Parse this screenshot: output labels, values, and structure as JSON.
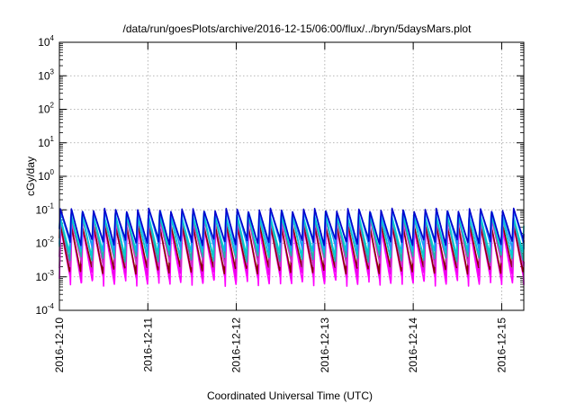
{
  "chart_data": {
    "type": "line",
    "title": "/data/run/goesPlots/archive/2016-12-15/06:00/flux/../bryn/5daysMars.plot",
    "xlabel": "Coordinated Universal Time (UTC)",
    "ylabel": "cGy/day",
    "yscale": "log",
    "ylim": [
      0.0001,
      10000
    ],
    "xlim": [
      "2016-12-10T00:00",
      "2016-12-15T06:00"
    ],
    "grid": true,
    "x_ticks": [
      "2016-12-10",
      "2016-12-11",
      "2016-12-12",
      "2016-12-13",
      "2016-12-14",
      "2016-12-15"
    ],
    "y_ticks": [
      {
        "base": "10",
        "exp": "-4"
      },
      {
        "base": "10",
        "exp": "-3"
      },
      {
        "base": "10",
        "exp": "-2"
      },
      {
        "base": "10",
        "exp": "-1"
      },
      {
        "base": "10",
        "exp": "0"
      },
      {
        "base": "10",
        "exp": "1"
      },
      {
        "base": "10",
        "exp": "2"
      },
      {
        "base": "10",
        "exp": "3"
      },
      {
        "base": "10",
        "exp": "4"
      }
    ],
    "pattern": {
      "period_hours": 3.0,
      "count": 30
    },
    "series": [
      {
        "color": "#ff00ff",
        "peak": 0.028,
        "trough": 0.0007
      },
      {
        "color": "#ee00ee",
        "peak": 0.034,
        "trough": 0.0011
      },
      {
        "color": "#8b0000",
        "peak": 0.04,
        "trough": 0.0016
      },
      {
        "color": "#cc33cc",
        "peak": 0.05,
        "trough": 0.0024
      },
      {
        "color": "#20b2aa",
        "peak": 0.062,
        "trough": 0.0035
      },
      {
        "color": "#00ced1",
        "peak": 0.075,
        "trough": 0.005
      },
      {
        "color": "#1e90ff",
        "peak": 0.09,
        "trough": 0.0075
      },
      {
        "color": "#0000cd",
        "peak": 0.1,
        "trough": 0.011
      }
    ]
  }
}
